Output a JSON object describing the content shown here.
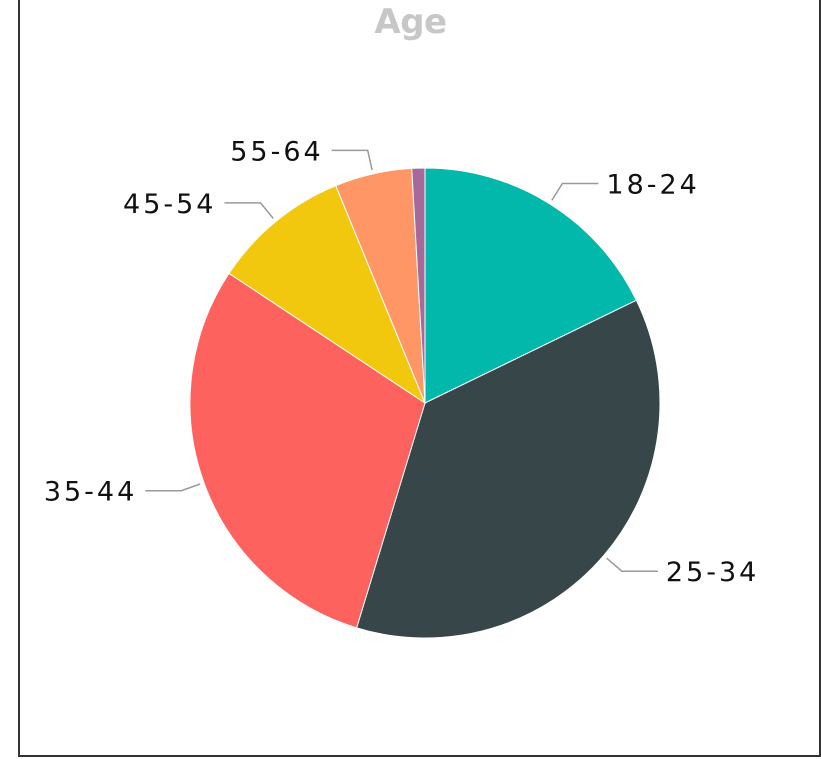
{
  "chart_data": {
    "type": "pie",
    "title": "Age",
    "categories": [
      "18-24",
      "25-34",
      "35-44",
      "45-54",
      "55-64",
      ""
    ],
    "values": [
      17.8,
      36.9,
      29.6,
      9.5,
      5.3,
      0.9
    ],
    "colors": [
      "#01B8AA",
      "#374649",
      "#FD625E",
      "#F2C80F",
      "#FE9666",
      "#A66999"
    ],
    "start_angle_deg": 0,
    "direction": "clockwise",
    "legend": "none",
    "data_labels": "category"
  }
}
